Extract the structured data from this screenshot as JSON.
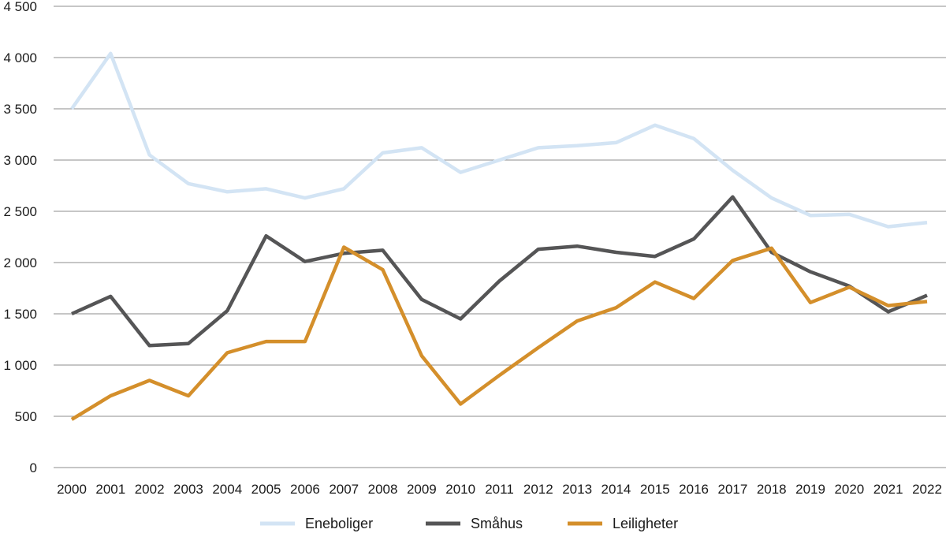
{
  "chart_data": {
    "type": "line",
    "title": "",
    "xlabel": "",
    "ylabel": "",
    "x": [
      "2000",
      "2001",
      "2002",
      "2003",
      "2004",
      "2005",
      "2006",
      "2007",
      "2008",
      "2009",
      "2010",
      "2011",
      "2012",
      "2013",
      "2014",
      "2015",
      "2016",
      "2017",
      "2018",
      "2019",
      "2020",
      "2021",
      "2022"
    ],
    "ylim": [
      0,
      4500
    ],
    "yticks": [
      0,
      500,
      1000,
      1500,
      2000,
      2500,
      3000,
      3500,
      4000,
      4500
    ],
    "ytick_labels": [
      "0",
      "500",
      "1 000",
      "1 500",
      "2 000",
      "2 500",
      "3 000",
      "3 500",
      "4 000",
      "4 500"
    ],
    "grid": "horizontal",
    "legend_position": "bottom",
    "series": [
      {
        "name": "Eneboliger",
        "color": "#d3e4f4",
        "values": [
          3500,
          4040,
          3050,
          2770,
          2690,
          2720,
          2630,
          2720,
          3070,
          3120,
          2880,
          3000,
          3120,
          3140,
          3170,
          3340,
          3210,
          2900,
          2630,
          2460,
          2470,
          2350,
          2390
        ]
      },
      {
        "name": "Småhus",
        "color": "#555556",
        "values": [
          1500,
          1670,
          1190,
          1210,
          1530,
          2260,
          2010,
          2090,
          2120,
          1640,
          1450,
          1820,
          2130,
          2160,
          2100,
          2060,
          2230,
          2640,
          2100,
          1910,
          1770,
          1520,
          1680
        ]
      },
      {
        "name": "Leiligheter",
        "color": "#d48f2b",
        "values": [
          470,
          700,
          850,
          700,
          1120,
          1230,
          1230,
          2150,
          1930,
          1090,
          620,
          900,
          1170,
          1430,
          1560,
          1810,
          1650,
          2020,
          2140,
          1610,
          1760,
          1580,
          1620
        ]
      }
    ]
  }
}
